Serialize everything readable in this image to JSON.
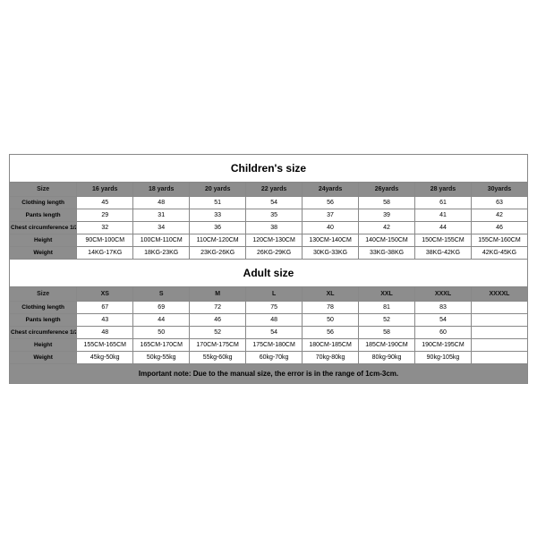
{
  "children": {
    "title": "Children's size",
    "headers": [
      "Size",
      "16 yards",
      "18 yards",
      "20 yards",
      "22 yards",
      "24yards",
      "26yards",
      "28 yards",
      "30yards"
    ],
    "rows": [
      {
        "label": "Clothing length",
        "cells": [
          "45",
          "48",
          "51",
          "54",
          "56",
          "58",
          "61",
          "63"
        ]
      },
      {
        "label": "Pants length",
        "cells": [
          "29",
          "31",
          "33",
          "35",
          "37",
          "39",
          "41",
          "42"
        ]
      },
      {
        "label": "Chest circumference 1/2",
        "cells": [
          "32",
          "34",
          "36",
          "38",
          "40",
          "42",
          "44",
          "46"
        ]
      },
      {
        "label": "Height",
        "cells": [
          "90CM-100CM",
          "100CM-110CM",
          "110CM-120CM",
          "120CM-130CM",
          "130CM-140CM",
          "140CM-150CM",
          "150CM-155CM",
          "155CM-160CM"
        ]
      },
      {
        "label": "Weight",
        "cells": [
          "14KG-17KG",
          "18KG-23KG",
          "23KG-26KG",
          "26KG-29KG",
          "30KG-33KG",
          "33KG-38KG",
          "38KG-42KG",
          "42KG-45KG"
        ]
      }
    ]
  },
  "adult": {
    "title": "Adult size",
    "headers": [
      "Size",
      "XS",
      "S",
      "M",
      "L",
      "XL",
      "XXL",
      "XXXL",
      "XXXXL"
    ],
    "rows": [
      {
        "label": "Clothing length",
        "cells": [
          "67",
          "69",
          "72",
          "75",
          "78",
          "81",
          "83",
          ""
        ]
      },
      {
        "label": "Pants length",
        "cells": [
          "43",
          "44",
          "46",
          "48",
          "50",
          "52",
          "54",
          ""
        ]
      },
      {
        "label": "Chest circumference 1/2",
        "cells": [
          "48",
          "50",
          "52",
          "54",
          "56",
          "58",
          "60",
          ""
        ]
      },
      {
        "label": "Height",
        "cells": [
          "155CM-165CM",
          "165CM-170CM",
          "170CM-175CM",
          "175CM-180CM",
          "180CM-185CM",
          "185CM-190CM",
          "190CM-195CM",
          ""
        ]
      },
      {
        "label": "Weight",
        "cells": [
          "45kg-50kg",
          "50kg-55kg",
          "55kg-60kg",
          "60kg-70kg",
          "70kg-80kg",
          "80kg-90kg",
          "90kg-105kg",
          ""
        ]
      }
    ]
  },
  "note": "Important note: Due to the manual size, the error is in the range of 1cm-3cm."
}
